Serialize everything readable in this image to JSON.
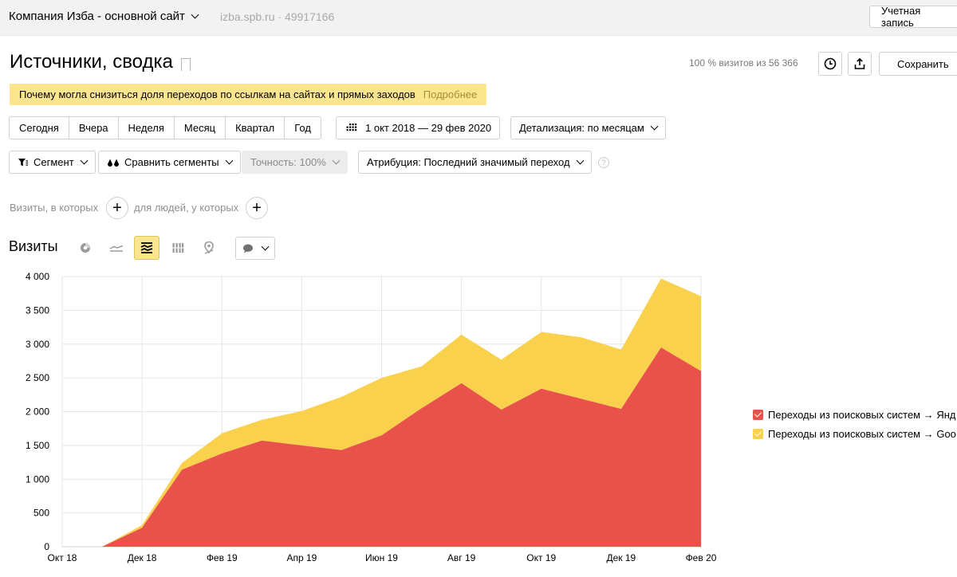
{
  "header": {
    "site_name": "Компания Изба - основной сайт",
    "domain": "izba.spb.ru",
    "counter_id": "49917166",
    "account_label": "Учетная запись"
  },
  "report": {
    "title": "Источники, сводка",
    "visits_share": "100 % визитов из 56 366",
    "save_label": "Сохранить"
  },
  "notice": {
    "text": "Почему могла снизиться доля переходов по ссылкам на сайтах и прямых заходов",
    "more": "Подробнее"
  },
  "periods": [
    "Сегодня",
    "Вчера",
    "Неделя",
    "Месяц",
    "Квартал",
    "Год"
  ],
  "date_range": "1 окт 2018 — 29 фев 2020",
  "detail": "Детализация: по месяцам",
  "filters": {
    "segment": "Сегмент",
    "compare": "Сравнить сегменты",
    "accuracy": "Точность: 100%",
    "attribution": "Атрибуция: Последний значимый переход"
  },
  "conditions": {
    "visits_label": "Визиты, в которых",
    "people_label": "для людей, у которых"
  },
  "chart_section": {
    "title": "Визиты",
    "icons": [
      "pie-chart-icon",
      "line-chart-icon",
      "stacked-area-chart-icon",
      "bar-chart-icon",
      "map-pin-icon",
      "comment-icon"
    ]
  },
  "colors": {
    "series_red": "#e8524a",
    "series_yellow": "#fad14d",
    "notice_bg": "#fbe58e",
    "grid": "#e6e6e6"
  },
  "chart_data": {
    "type": "area",
    "stacked": true,
    "ylim": [
      0,
      4000
    ],
    "yticks": [
      "0",
      "500",
      "1 000",
      "1 500",
      "2 000",
      "2 500",
      "3 000",
      "3 500",
      "4 000"
    ],
    "ytick_values": [
      0,
      500,
      1000,
      1500,
      2000,
      2500,
      3000,
      3500,
      4000
    ],
    "xtick_labels": [
      "Окт 18",
      "Дек 18",
      "Фев 19",
      "Апр 19",
      "Июн 19",
      "Авг 19",
      "Окт 19",
      "Дек 19",
      "Фев 20"
    ],
    "xtick_index": [
      0,
      2,
      4,
      6,
      8,
      10,
      12,
      14,
      16
    ],
    "x": [
      "Окт 18",
      "Ноя 18",
      "Дек 18",
      "Янв 19",
      "Фев 19",
      "Мар 19",
      "Апр 19",
      "Май 19",
      "Июн 19",
      "Июл 19",
      "Авг 19",
      "Сен 19",
      "Окт 19",
      "Ноя 19",
      "Дек 19",
      "Янв 20",
      "Фев 20"
    ],
    "series": [
      {
        "name": "Переходы из поисковых систем → Янд",
        "values": [
          0,
          0,
          280,
          1140,
          1380,
          1570,
          1500,
          1430,
          1650,
          2050,
          2420,
          2030,
          2340,
          2190,
          2040,
          2950,
          2600
        ]
      },
      {
        "name": "Переходы из поисковых систем → Goo",
        "values": [
          0,
          0,
          40,
          100,
          300,
          310,
          510,
          790,
          850,
          620,
          720,
          740,
          840,
          910,
          880,
          1020,
          1110
        ]
      }
    ],
    "grid": true,
    "legend_position": "right"
  }
}
